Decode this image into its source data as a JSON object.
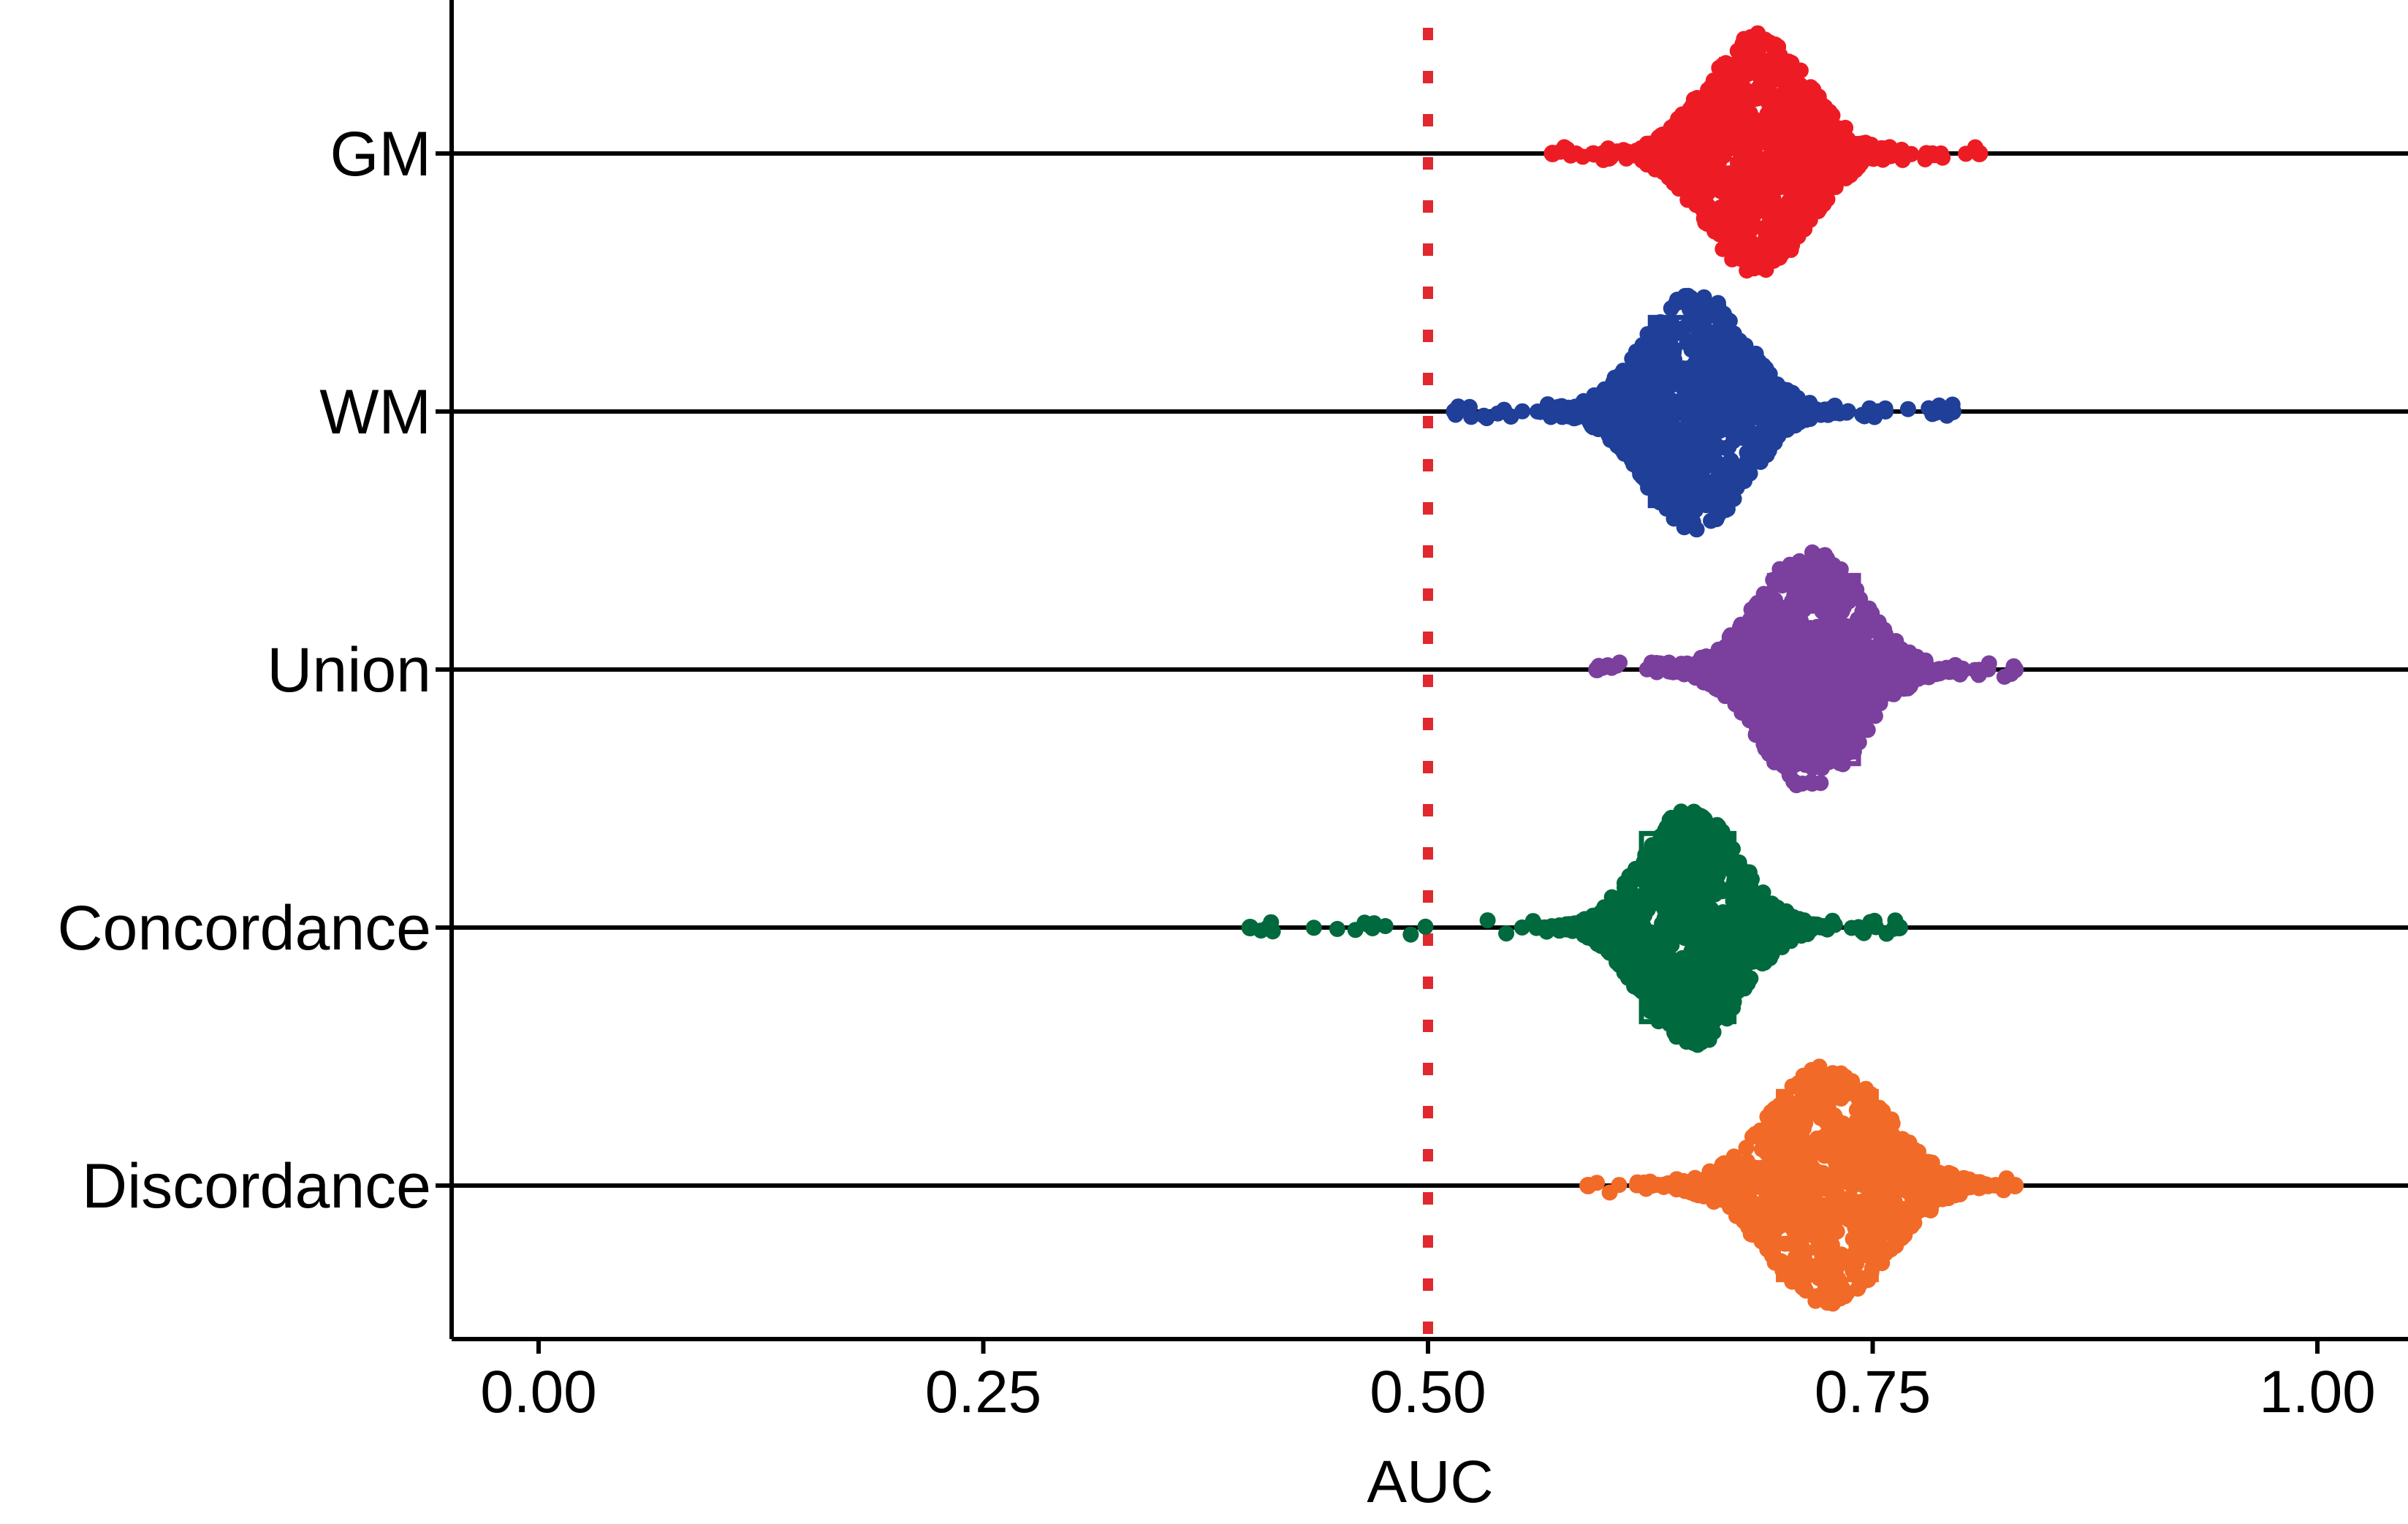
{
  "chart_data": {
    "type": "beeswarm",
    "title": "",
    "xlabel": "AUC",
    "ylabel": "",
    "xlim": [
      -0.03,
      1.03
    ],
    "grid": false,
    "legend": "none",
    "x_ticks": [
      0.0,
      0.25,
      0.5,
      0.75,
      1.0
    ],
    "x_tick_labels": [
      "0.00",
      "0.25",
      "0.50",
      "0.75",
      "1.00"
    ],
    "reference_line": {
      "x": 0.5,
      "style": "dotted",
      "color": "#e0282e"
    },
    "categories": [
      "GM",
      "WM",
      "Union",
      "Concordance",
      "Discordance"
    ],
    "series": [
      {
        "name": "GM",
        "color": "#ed1c24",
        "center": 0.685,
        "spread": 0.035,
        "min": 0.57,
        "max": 0.81,
        "q1": 0.665,
        "q3": 0.705
      },
      {
        "name": "WM",
        "color": "#1f3f99",
        "center": 0.65,
        "spread": 0.035,
        "min": 0.515,
        "max": 0.795,
        "q1": 0.625,
        "q3": 0.67
      },
      {
        "name": "Union",
        "color": "#7b3f9e",
        "center": 0.715,
        "spread": 0.035,
        "min": 0.595,
        "max": 0.83,
        "q1": 0.692,
        "q3": 0.742
      },
      {
        "name": "Concordance",
        "color": "#00693e",
        "center": 0.648,
        "spread": 0.033,
        "min": 0.4,
        "max": 0.765,
        "q1": 0.62,
        "q3": 0.672
      },
      {
        "name": "Discordance",
        "color": "#f26a27",
        "center": 0.725,
        "spread": 0.04,
        "min": 0.59,
        "max": 0.83,
        "q1": 0.697,
        "q3": 0.752
      }
    ]
  }
}
